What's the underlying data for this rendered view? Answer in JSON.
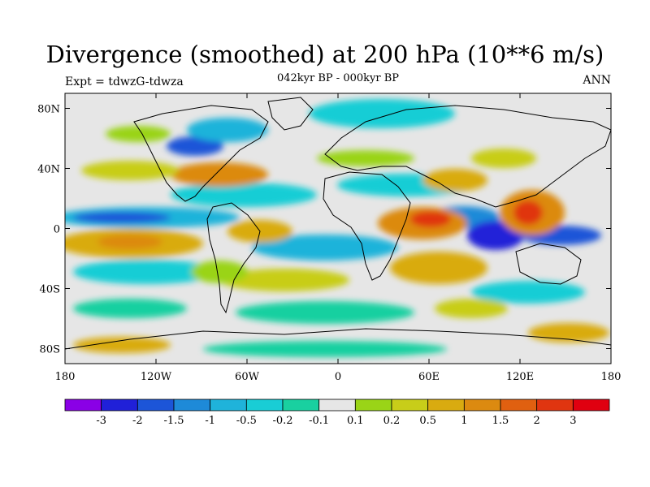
{
  "header": {
    "title": "Divergence (smoothed) at 200 hPa (10**6 m/s)",
    "subtitle": "042kyr BP - 000kyr BP",
    "left_label": "Expt = tdwzG-tdwza",
    "right_label": "ANN"
  },
  "map": {
    "projection": "cylindrical equidistant",
    "lat_ticks": [
      "80N",
      "40N",
      "0",
      "40S",
      "80S"
    ],
    "lon_ticks": [
      "180",
      "120W",
      "60W",
      "0",
      "60E",
      "120E",
      "180"
    ],
    "background_color": "#e6e6e6"
  },
  "colorbar": {
    "labels": [
      "-3",
      "-2",
      "-1.5",
      "-1",
      "-0.5",
      "-0.2",
      "-0.1",
      "0.1",
      "0.2",
      "0.5",
      "1",
      "1.5",
      "2",
      "3"
    ],
    "colors": [
      "#8a00e6",
      "#2020d8",
      "#1c55d8",
      "#1e8ad8",
      "#1fb3da",
      "#19cdd5",
      "#19d0a0",
      "#e6e6e6",
      "#9ad417",
      "#c8cd19",
      "#d9ab10",
      "#dc8a10",
      "#e06010",
      "#e03510",
      "#e00010"
    ]
  }
}
